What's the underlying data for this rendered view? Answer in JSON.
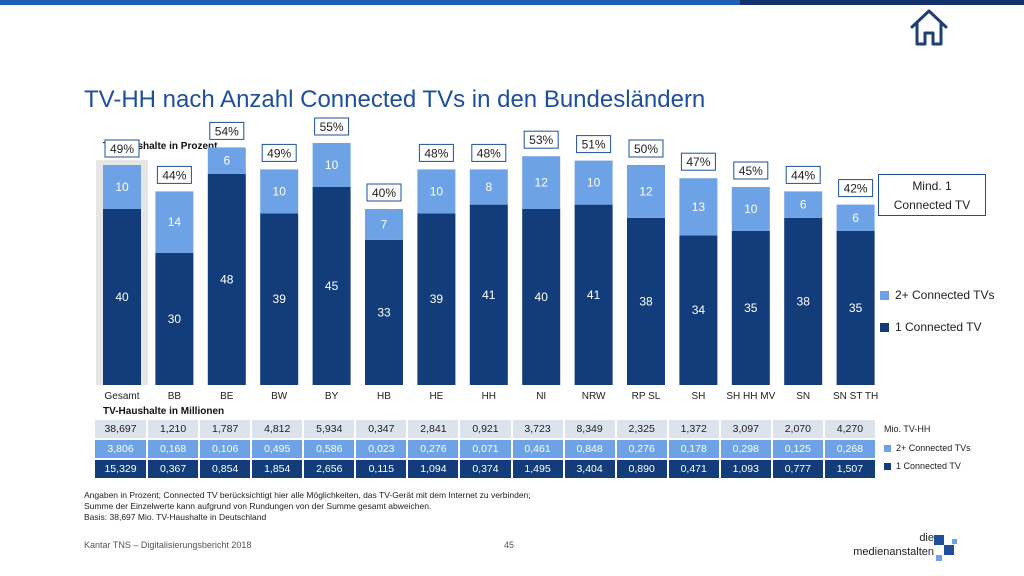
{
  "title": "TV-HH nach Anzahl Connected TVs in den Bundesländern",
  "chart_subtitle": "TV-Haushalte in Prozent",
  "table_subtitle": "TV-Haushalte in Millionen",
  "legend": {
    "box_line1": "Mind. 1",
    "box_line2": "Connected TV",
    "two_plus": "2+ Connected TVs",
    "one": "1 Connected TV"
  },
  "colors": {
    "one_connected": "#123d7a",
    "two_plus_connected": "#6ea2e6",
    "total_row": "#dde3ec",
    "highlight": "#e6e6e6",
    "title": "#1e4f9c"
  },
  "chart_data": {
    "type": "bar",
    "stacked": true,
    "categories": [
      "Gesamt",
      "BB",
      "BE",
      "BW",
      "BY",
      "HB",
      "HE",
      "HH",
      "NI",
      "NRW",
      "RP SL",
      "SH",
      "SH HH MV",
      "SN",
      "SN ST TH"
    ],
    "series": [
      {
        "name": "1 Connected TV",
        "values": [
          40,
          30,
          48,
          39,
          45,
          33,
          39,
          41,
          40,
          41,
          38,
          34,
          35,
          38,
          35
        ]
      },
      {
        "name": "2+ Connected TVs",
        "values": [
          10,
          14,
          6,
          10,
          10,
          7,
          10,
          8,
          12,
          10,
          12,
          13,
          10,
          6,
          6
        ]
      }
    ],
    "totals_label": [
      "49%",
      "44%",
      "54%",
      "49%",
      "55%",
      "40%",
      "48%",
      "48%",
      "53%",
      "51%",
      "50%",
      "47%",
      "45%",
      "44%",
      "42%"
    ],
    "ylim": [
      0,
      60
    ],
    "highlight_category": "Gesamt"
  },
  "table": {
    "rows": [
      {
        "label": "Mio. TV-HH",
        "values": [
          "38,697",
          "1,210",
          "1,787",
          "4,812",
          "5,934",
          "0,347",
          "2,841",
          "0,921",
          "3,723",
          "8,349",
          "2,325",
          "1,372",
          "3,097",
          "2,070",
          "4,270"
        ]
      },
      {
        "label": "2+ Connected TVs",
        "values": [
          "3,806",
          "0,168",
          "0,106",
          "0,495",
          "0,586",
          "0,023",
          "0,276",
          "0,071",
          "0,461",
          "0,848",
          "0,276",
          "0,178",
          "0,298",
          "0,125",
          "0,268"
        ]
      },
      {
        "label": "1 Connected TV",
        "values": [
          "15,329",
          "0,367",
          "0,854",
          "1,854",
          "2,656",
          "0,115",
          "1,094",
          "0,374",
          "1,495",
          "3,404",
          "0,890",
          "0,471",
          "1,093",
          "0,777",
          "1,507"
        ]
      }
    ]
  },
  "footnotes": [
    "Angaben in Prozent; Connected TV berücksichtigt hier alle Möglichkeiten, das TV-Gerät mit dem Internet zu verbinden;",
    "Summe der Einzelwerte kann aufgrund von Rundungen von der Summe gesamt abweichen.",
    "Basis: 38,697 Mio. TV-Haushalte in Deutschland"
  ],
  "source": "Kantar TNS – Digitalisierungsbericht 2018",
  "page_number": "45",
  "logo": {
    "line1": "die",
    "line2": "medienanstalten"
  },
  "icons": {
    "home": "home-icon"
  }
}
